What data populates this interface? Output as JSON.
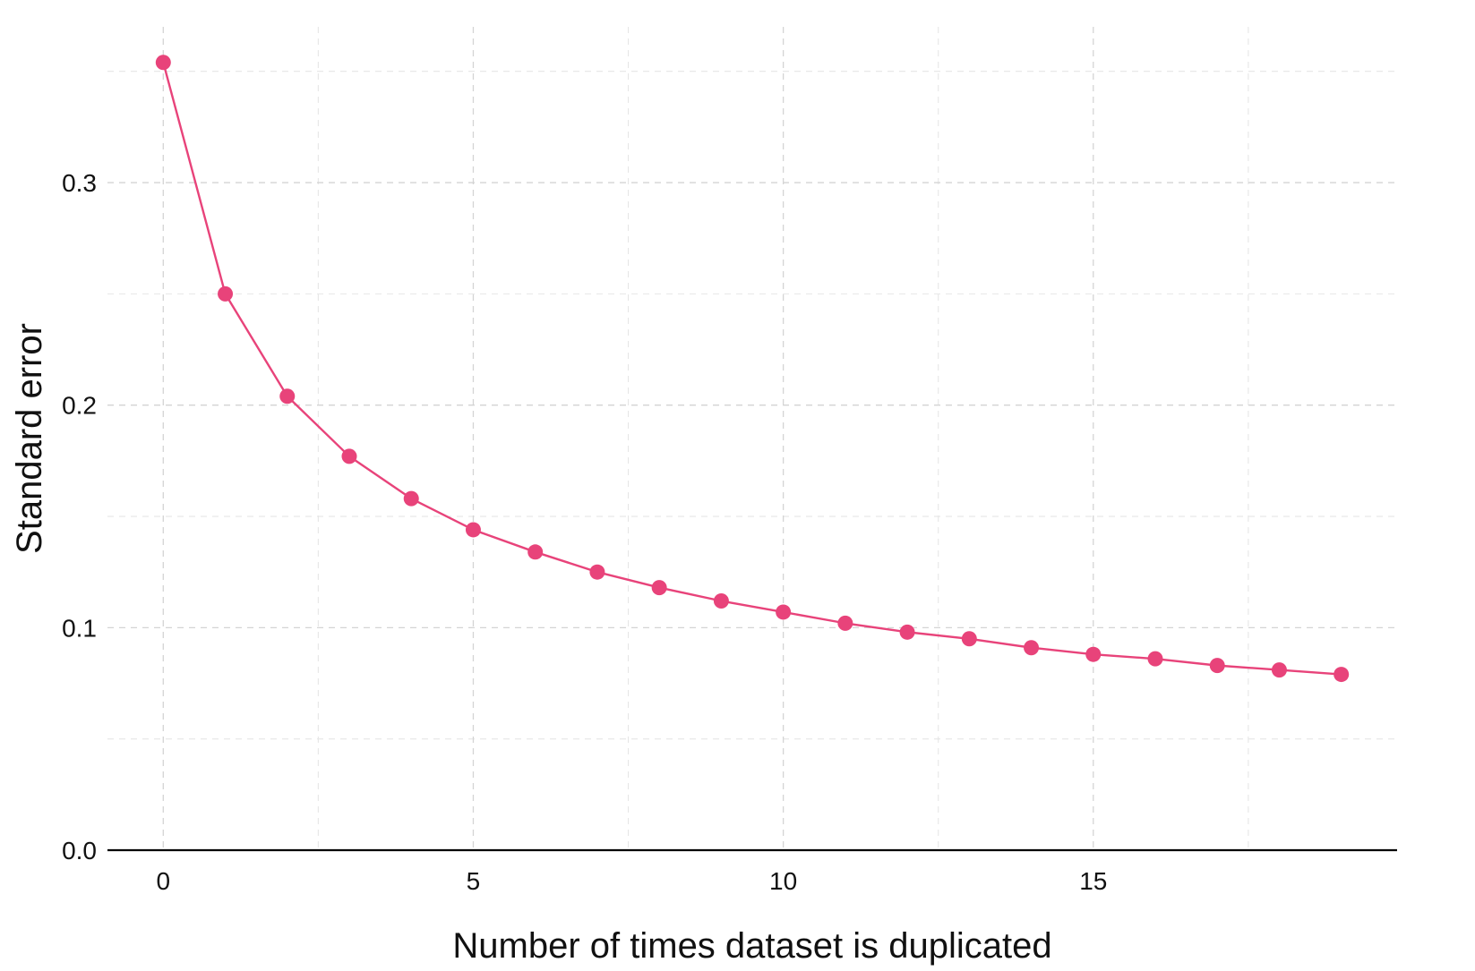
{
  "chart_data": {
    "type": "line",
    "xlabel": "Number of times dataset is duplicated",
    "ylabel": "Standard error",
    "x": [
      0,
      1,
      2,
      3,
      4,
      5,
      6,
      7,
      8,
      9,
      10,
      11,
      12,
      13,
      14,
      15,
      16,
      17,
      18,
      19
    ],
    "series": [
      {
        "values": [
          0.354,
          0.25,
          0.204,
          0.177,
          0.158,
          0.144,
          0.134,
          0.125,
          0.118,
          0.112,
          0.107,
          0.102,
          0.098,
          0.095,
          0.091,
          0.088,
          0.086,
          0.083,
          0.081,
          0.079
        ],
        "color": "#e8437a"
      }
    ],
    "xlim": [
      -0.9,
      19.9
    ],
    "ylim": [
      0.0,
      0.37
    ],
    "x_ticks": [
      0,
      5,
      10,
      15
    ],
    "x_tick_labels": [
      "0",
      "5",
      "10",
      "15"
    ],
    "y_ticks": [
      0.0,
      0.1,
      0.2,
      0.3
    ],
    "y_tick_labels": [
      "0.0",
      "0.1",
      "0.2",
      "0.3"
    ],
    "x_minor_ticks": [
      2.5,
      7.5,
      12.5,
      17.5
    ],
    "y_minor_ticks": [
      0.05,
      0.15,
      0.25,
      0.35
    ],
    "grid": true,
    "grid_style": "dashed",
    "legend": "none",
    "colors": {
      "line": "#e8437a",
      "axis": "#000000",
      "grid": "#d4d4d4",
      "text": "#111111"
    }
  }
}
